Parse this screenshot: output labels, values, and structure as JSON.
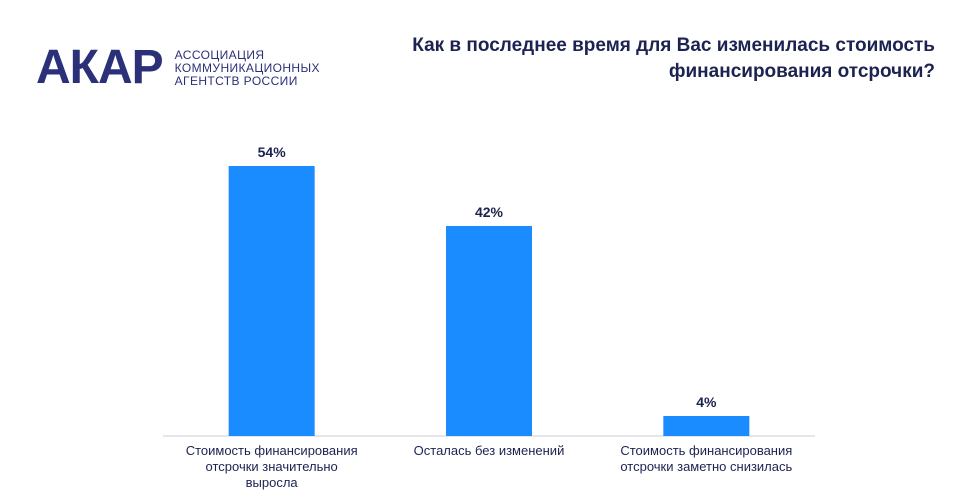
{
  "logo": {
    "mark": "АКАР",
    "line1": "АССОЦИАЦИЯ",
    "line2": "КОММУНИКАЦИОННЫХ",
    "line3": "АГЕНТСТВ РОССИИ"
  },
  "chart_data": {
    "type": "bar",
    "title_line1": "Как в последнее время для Вас изменилась стоимость",
    "title_line2": "финансирования отсрочки?",
    "categories": [
      [
        "Стоимость финансирования",
        "отсрочки значительно",
        "выросла"
      ],
      [
        "Осталась без изменений"
      ],
      [
        "Стоимость финансирования",
        "отсрочки заметно снизилась"
      ]
    ],
    "values": [
      54,
      42,
      4
    ],
    "value_labels": [
      "54%",
      "42%",
      "4%"
    ],
    "ylim": [
      0,
      60
    ],
    "grid": false,
    "bar_color": "#1a8cff"
  }
}
